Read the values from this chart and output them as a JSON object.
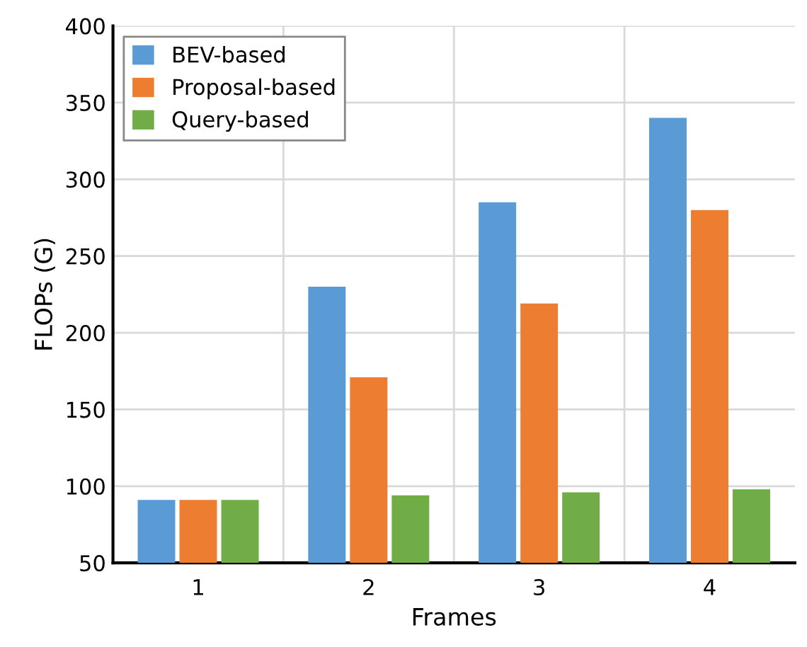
{
  "chart_data": {
    "type": "bar",
    "xlabel": "Frames",
    "ylabel": "FLOPs (G)",
    "categories": [
      "1",
      "2",
      "3",
      "4"
    ],
    "series": [
      {
        "name": "BEV-based",
        "color": "#5b9bd5",
        "values": [
          91,
          230,
          285,
          340
        ]
      },
      {
        "name": "Proposal-based",
        "color": "#ed7d31",
        "values": [
          91,
          171,
          219,
          280
        ]
      },
      {
        "name": "Query-based",
        "color": "#70ad47",
        "values": [
          91,
          94,
          96,
          98
        ]
      }
    ],
    "ylim": [
      50,
      400
    ],
    "yticks": [
      50,
      100,
      150,
      200,
      250,
      300,
      350,
      400
    ],
    "grid": true,
    "legend": "top left"
  }
}
